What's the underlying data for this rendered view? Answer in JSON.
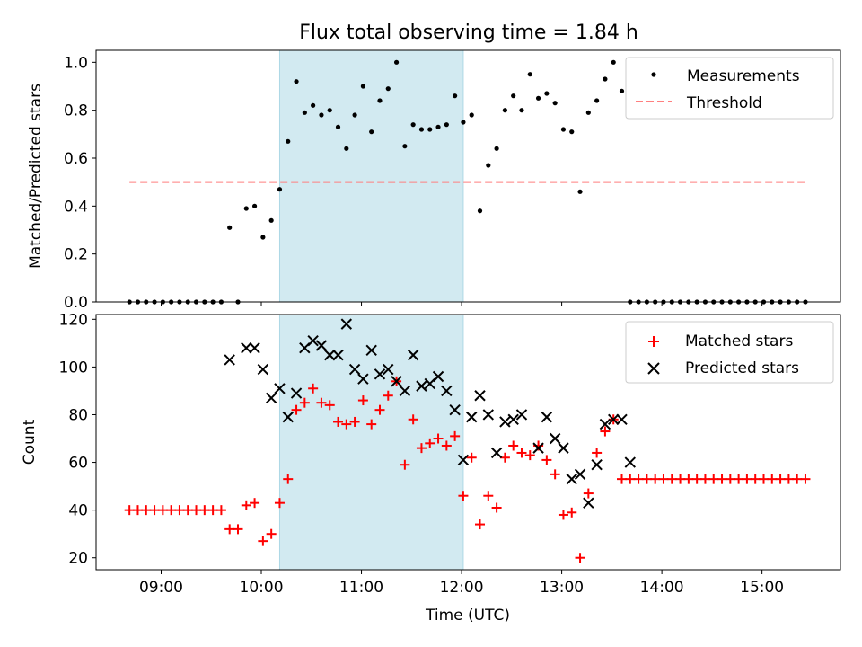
{
  "title": "Flux total observing time = 1.84 h",
  "colors": {
    "measurement": "#000000",
    "threshold": "#ff7f7f",
    "matched": "#ff0000",
    "predicted": "#000000",
    "shade": "#add8e6"
  },
  "chart_data": [
    {
      "type": "scatter",
      "panel": "top",
      "ylabel": "Matched/Predicted stars",
      "ylim": [
        0,
        1.05
      ],
      "yticks": [
        0.0,
        0.2,
        0.4,
        0.6,
        0.8,
        1.0
      ],
      "ytick_labels": [
        "0.0",
        "0.2",
        "0.4",
        "0.6",
        "0.8",
        "1.0"
      ],
      "xlim": [
        "08:21",
        "15:47"
      ],
      "shaded_interval": [
        "10:11",
        "12:01"
      ],
      "legend": {
        "position": "top-right",
        "entries": [
          "Measurements",
          "Threshold"
        ]
      },
      "threshold": {
        "name": "Threshold",
        "value": 0.5,
        "x_range": [
          "08:41",
          "15:26"
        ]
      },
      "series": [
        {
          "name": "Measurements",
          "marker": "dot",
          "points": [
            [
              "08:41",
              0.0
            ],
            [
              "08:46",
              0.0
            ],
            [
              "08:51",
              0.0
            ],
            [
              "08:56",
              0.0
            ],
            [
              "09:01",
              0.0
            ],
            [
              "09:06",
              0.0
            ],
            [
              "09:11",
              0.0
            ],
            [
              "09:16",
              0.0
            ],
            [
              "09:21",
              0.0
            ],
            [
              "09:26",
              0.0
            ],
            [
              "09:31",
              0.0
            ],
            [
              "09:36",
              0.0
            ],
            [
              "09:41",
              0.31
            ],
            [
              "09:46",
              0.0
            ],
            [
              "09:51",
              0.39
            ],
            [
              "09:56",
              0.4
            ],
            [
              "10:01",
              0.27
            ],
            [
              "10:06",
              0.34
            ],
            [
              "10:11",
              0.47
            ],
            [
              "10:16",
              0.67
            ],
            [
              "10:21",
              0.92
            ],
            [
              "10:26",
              0.79
            ],
            [
              "10:31",
              0.82
            ],
            [
              "10:36",
              0.78
            ],
            [
              "10:41",
              0.8
            ],
            [
              "10:46",
              0.73
            ],
            [
              "10:51",
              0.64
            ],
            [
              "10:56",
              0.78
            ],
            [
              "11:01",
              0.9
            ],
            [
              "11:06",
              0.71
            ],
            [
              "11:11",
              0.84
            ],
            [
              "11:16",
              0.89
            ],
            [
              "11:21",
              1.0
            ],
            [
              "11:26",
              0.65
            ],
            [
              "11:31",
              0.74
            ],
            [
              "11:36",
              0.72
            ],
            [
              "11:41",
              0.72
            ],
            [
              "11:46",
              0.73
            ],
            [
              "11:51",
              0.74
            ],
            [
              "11:56",
              0.86
            ],
            [
              "12:01",
              0.75
            ],
            [
              "12:06",
              0.78
            ],
            [
              "12:11",
              0.38
            ],
            [
              "12:16",
              0.57
            ],
            [
              "12:21",
              0.64
            ],
            [
              "12:26",
              0.8
            ],
            [
              "12:31",
              0.86
            ],
            [
              "12:36",
              0.8
            ],
            [
              "12:41",
              0.95
            ],
            [
              "12:46",
              0.85
            ],
            [
              "12:51",
              0.87
            ],
            [
              "12:56",
              0.83
            ],
            [
              "13:01",
              0.72
            ],
            [
              "13:06",
              0.71
            ],
            [
              "13:11",
              0.46
            ],
            [
              "13:16",
              0.79
            ],
            [
              "13:21",
              0.84
            ],
            [
              "13:26",
              0.93
            ],
            [
              "13:31",
              1.0
            ],
            [
              "13:36",
              0.88
            ],
            [
              "13:41",
              0.0
            ],
            [
              "13:46",
              0.0
            ],
            [
              "13:51",
              0.0
            ],
            [
              "13:56",
              0.0
            ],
            [
              "14:01",
              0.0
            ],
            [
              "14:06",
              0.0
            ],
            [
              "14:11",
              0.0
            ],
            [
              "14:16",
              0.0
            ],
            [
              "14:21",
              0.0
            ],
            [
              "14:26",
              0.0
            ],
            [
              "14:31",
              0.0
            ],
            [
              "14:36",
              0.0
            ],
            [
              "14:41",
              0.0
            ],
            [
              "14:46",
              0.0
            ],
            [
              "14:51",
              0.0
            ],
            [
              "14:56",
              0.0
            ],
            [
              "15:01",
              0.0
            ],
            [
              "15:06",
              0.0
            ],
            [
              "15:11",
              0.0
            ],
            [
              "15:16",
              0.0
            ],
            [
              "15:21",
              0.0
            ],
            [
              "15:26",
              0.0
            ]
          ]
        }
      ]
    },
    {
      "type": "scatter",
      "panel": "bottom",
      "xlabel": "Time (UTC)",
      "ylabel": "Count",
      "ylim": [
        15,
        122
      ],
      "yticks": [
        20,
        40,
        60,
        80,
        100,
        120
      ],
      "ytick_labels": [
        "20",
        "40",
        "60",
        "80",
        "100",
        "120"
      ],
      "xlim": [
        "08:21",
        "15:47"
      ],
      "xticks": [
        "09:00",
        "10:00",
        "11:00",
        "12:00",
        "13:00",
        "14:00",
        "15:00"
      ],
      "shaded_interval": [
        "10:11",
        "12:01"
      ],
      "legend": {
        "position": "top-right",
        "entries": [
          "Matched stars",
          "Predicted stars"
        ]
      },
      "series": [
        {
          "name": "Matched stars",
          "marker": "plus",
          "points": [
            [
              "08:41",
              40
            ],
            [
              "08:46",
              40
            ],
            [
              "08:51",
              40
            ],
            [
              "08:56",
              40
            ],
            [
              "09:01",
              40
            ],
            [
              "09:06",
              40
            ],
            [
              "09:11",
              40
            ],
            [
              "09:16",
              40
            ],
            [
              "09:21",
              40
            ],
            [
              "09:26",
              40
            ],
            [
              "09:31",
              40
            ],
            [
              "09:36",
              40
            ],
            [
              "09:41",
              32
            ],
            [
              "09:46",
              32
            ],
            [
              "09:51",
              42
            ],
            [
              "09:56",
              43
            ],
            [
              "10:01",
              27
            ],
            [
              "10:06",
              30
            ],
            [
              "10:11",
              43
            ],
            [
              "10:16",
              53
            ],
            [
              "10:21",
              82
            ],
            [
              "10:26",
              85
            ],
            [
              "10:31",
              91
            ],
            [
              "10:36",
              85
            ],
            [
              "10:41",
              84
            ],
            [
              "10:46",
              77
            ],
            [
              "10:51",
              76
            ],
            [
              "10:56",
              77
            ],
            [
              "11:01",
              86
            ],
            [
              "11:06",
              76
            ],
            [
              "11:11",
              82
            ],
            [
              "11:16",
              88
            ],
            [
              "11:21",
              94
            ],
            [
              "11:26",
              59
            ],
            [
              "11:31",
              78
            ],
            [
              "11:36",
              66
            ],
            [
              "11:41",
              68
            ],
            [
              "11:46",
              70
            ],
            [
              "11:51",
              67
            ],
            [
              "11:56",
              71
            ],
            [
              "12:01",
              46
            ],
            [
              "12:06",
              62
            ],
            [
              "12:11",
              34
            ],
            [
              "12:16",
              46
            ],
            [
              "12:21",
              41
            ],
            [
              "12:26",
              62
            ],
            [
              "12:31",
              67
            ],
            [
              "12:36",
              64
            ],
            [
              "12:41",
              63
            ],
            [
              "12:46",
              67
            ],
            [
              "12:51",
              61
            ],
            [
              "12:56",
              55
            ],
            [
              "13:01",
              38
            ],
            [
              "13:06",
              39
            ],
            [
              "13:11",
              20
            ],
            [
              "13:16",
              47
            ],
            [
              "13:21",
              64
            ],
            [
              "13:26",
              73
            ],
            [
              "13:31",
              78
            ],
            [
              "13:36",
              53
            ],
            [
              "13:41",
              53
            ],
            [
              "13:46",
              53
            ],
            [
              "13:51",
              53
            ],
            [
              "13:56",
              53
            ],
            [
              "14:01",
              53
            ],
            [
              "14:06",
              53
            ],
            [
              "14:11",
              53
            ],
            [
              "14:16",
              53
            ],
            [
              "14:21",
              53
            ],
            [
              "14:26",
              53
            ],
            [
              "14:31",
              53
            ],
            [
              "14:36",
              53
            ],
            [
              "14:41",
              53
            ],
            [
              "14:46",
              53
            ],
            [
              "14:51",
              53
            ],
            [
              "14:56",
              53
            ],
            [
              "15:01",
              53
            ],
            [
              "15:06",
              53
            ],
            [
              "15:11",
              53
            ],
            [
              "15:16",
              53
            ],
            [
              "15:21",
              53
            ],
            [
              "15:26",
              53
            ]
          ]
        },
        {
          "name": "Predicted stars",
          "marker": "x",
          "points": [
            [
              "09:41",
              103
            ],
            [
              "09:51",
              108
            ],
            [
              "09:56",
              108
            ],
            [
              "10:01",
              99
            ],
            [
              "10:06",
              87
            ],
            [
              "10:11",
              91
            ],
            [
              "10:16",
              79
            ],
            [
              "10:21",
              89
            ],
            [
              "10:26",
              108
            ],
            [
              "10:31",
              111
            ],
            [
              "10:36",
              109
            ],
            [
              "10:41",
              105
            ],
            [
              "10:46",
              105
            ],
            [
              "10:51",
              118
            ],
            [
              "10:56",
              99
            ],
            [
              "11:01",
              95
            ],
            [
              "11:06",
              107
            ],
            [
              "11:11",
              97
            ],
            [
              "11:16",
              99
            ],
            [
              "11:21",
              94
            ],
            [
              "11:26",
              90
            ],
            [
              "11:31",
              105
            ],
            [
              "11:36",
              92
            ],
            [
              "11:41",
              93
            ],
            [
              "11:46",
              96
            ],
            [
              "11:51",
              90
            ],
            [
              "11:56",
              82
            ],
            [
              "12:01",
              61
            ],
            [
              "12:06",
              79
            ],
            [
              "12:11",
              88
            ],
            [
              "12:16",
              80
            ],
            [
              "12:21",
              64
            ],
            [
              "12:26",
              77
            ],
            [
              "12:31",
              78
            ],
            [
              "12:36",
              80
            ],
            [
              "12:46",
              66
            ],
            [
              "12:51",
              79
            ],
            [
              "12:56",
              70
            ],
            [
              "13:01",
              66
            ],
            [
              "13:06",
              53
            ],
            [
              "13:11",
              55
            ],
            [
              "13:16",
              43
            ],
            [
              "13:21",
              59
            ],
            [
              "13:26",
              76
            ],
            [
              "13:31",
              78
            ],
            [
              "13:36",
              78
            ],
            [
              "13:41",
              60
            ]
          ]
        }
      ]
    }
  ]
}
